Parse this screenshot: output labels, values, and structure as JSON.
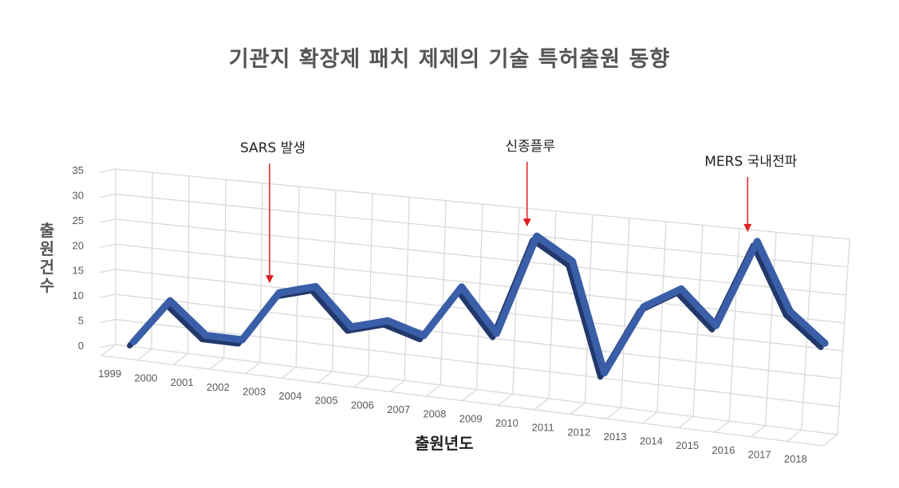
{
  "title": "기관지 확장제 패치 제제의 기술 특허출원 동향",
  "axes": {
    "ylabel": "출원건수",
    "xlabel": "출원년도"
  },
  "annotations": [
    {
      "text": "SARS 발생",
      "year": "2003"
    },
    {
      "text": "신종플루",
      "year": "2010"
    },
    {
      "text": "MERS 국내전파",
      "year": "2016"
    }
  ],
  "colors": {
    "line": "#3A5FA8",
    "line_dark": "#22386B",
    "arrow": "#E02020",
    "grid": "#D9D9D9",
    "tick_text": "#595959"
  },
  "chart_data": {
    "type": "line",
    "style": "3d-line",
    "title": "기관지 확장제 패치 제제의 기술 특허출원 동향",
    "xlabel": "출원년도",
    "ylabel": "출원건수",
    "categories": [
      "1999",
      "2000",
      "2001",
      "2002",
      "2003",
      "2004",
      "2005",
      "2006",
      "2007",
      "2008",
      "2009",
      "2010",
      "2011",
      "2012",
      "2013",
      "2014",
      "2015",
      "2016",
      "2017",
      "2018"
    ],
    "series": [
      {
        "name": "출원건수",
        "values": [
          1,
          10,
          4,
          4,
          14,
          16,
          9,
          11,
          9,
          19,
          11,
          30,
          26,
          6,
          19,
          23,
          17,
          33,
          21,
          16
        ]
      }
    ],
    "yticks": [
      0,
      5,
      10,
      15,
      20,
      25,
      30,
      35
    ],
    "ylim": [
      0,
      35
    ],
    "grid": true,
    "legend": "none",
    "annotations": [
      {
        "text": "SARS 발생",
        "x": "2003"
      },
      {
        "text": "신종플루",
        "x": "2010"
      },
      {
        "text": "MERS 국내전파",
        "x": "2016"
      }
    ]
  }
}
